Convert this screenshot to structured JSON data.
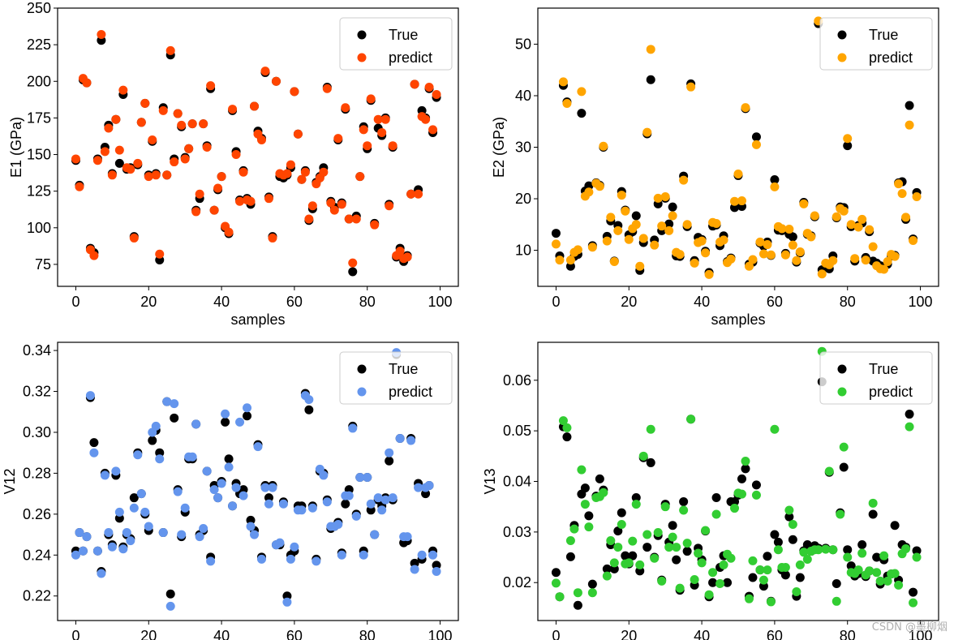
{
  "figure": {
    "watermark": "CSDN @墨柳烟"
  },
  "chart_data": [
    {
      "type": "scatter",
      "id": "e1",
      "title": "",
      "xlabel": "samples",
      "ylabel": "E1 (GPa)",
      "xlim": [
        -5,
        105
      ],
      "ylim": [
        60,
        250
      ],
      "xticks": [
        0,
        20,
        40,
        60,
        80,
        100
      ],
      "yticks": [
        75,
        100,
        125,
        150,
        175,
        200,
        225,
        250
      ],
      "legend": "top-right",
      "series": [
        {
          "name": "True",
          "color": "#000000",
          "values": [
            146,
            129,
            201,
            199,
            86,
            83,
            147,
            228,
            155,
            170,
            137,
            174,
            144,
            191,
            140,
            141,
            94,
            143,
            172,
            185,
            136,
            159,
            137,
            78,
            182,
            136,
            218,
            147,
            178,
            169,
            148,
            154,
            171,
            112,
            120,
            171,
            156,
            195,
            112,
            126,
            135,
            100,
            96,
            180,
            152,
            119,
            139,
            120,
            116,
            183,
            166,
            161,
            206,
            121,
            94,
            200,
            135,
            134,
            136,
            141,
            193,
            164,
            133,
            139,
            105,
            113,
            131,
            135,
            141,
            196,
            118,
            114,
            160,
            117,
            181,
            106,
            70,
            108,
            135,
            169,
            154,
            187,
            103,
            168,
            163,
            175,
            116,
            155,
            80,
            86,
            77,
            81,
            123,
            198,
            126,
            180,
            175,
            195,
            165,
            189
          ]
        },
        {
          "name": "predict",
          "color": "#ff4500",
          "values": [
            147,
            128,
            202,
            199,
            85,
            81,
            146,
            232,
            152,
            168,
            136,
            174,
            153,
            194,
            141,
            140,
            93,
            144,
            172,
            185,
            135,
            160,
            136,
            82,
            180,
            136,
            221,
            145,
            178,
            170,
            147,
            154,
            171,
            111,
            123,
            171,
            155,
            197,
            112,
            127,
            135,
            101,
            97,
            181,
            150,
            118,
            138,
            119,
            118,
            183,
            164,
            160,
            207,
            120,
            93,
            200,
            137,
            136,
            137,
            143,
            193,
            164,
            133,
            138,
            106,
            115,
            130,
            134,
            138,
            195,
            117,
            112,
            161,
            116,
            182,
            106,
            76,
            106,
            135,
            167,
            156,
            188,
            102,
            174,
            165,
            174,
            115,
            156,
            81,
            84,
            79,
            80,
            123,
            198,
            123,
            176,
            174,
            196,
            167,
            191
          ]
        }
      ]
    },
    {
      "type": "scatter",
      "id": "e2",
      "title": "",
      "xlabel": "samples",
      "ylabel": "E2 (GPa)",
      "xlim": [
        -5,
        105
      ],
      "ylim": [
        3,
        57
      ],
      "xticks": [
        0,
        20,
        40,
        60,
        80,
        100
      ],
      "yticks": [
        10,
        20,
        30,
        40,
        50
      ],
      "legend": "top-right",
      "series": [
        {
          "name": "True",
          "color": "#000000",
          "values": [
            13.3,
            8.9,
            42.0,
            38.8,
            6.9,
            8.8,
            9.2,
            36.6,
            21.5,
            22.5,
            10.9,
            23.1,
            22.6,
            30.0,
            12.7,
            15.7,
            7.9,
            14.8,
            21.4,
            17.8,
            13.0,
            13.6,
            16.7,
            6.1,
            11.5,
            32.6,
            43.1,
            12.0,
            19.0,
            13.8,
            20.1,
            15.1,
            18.4,
            8.9,
            8.8,
            24.4,
            14.6,
            42.3,
            8.0,
            12.5,
            12.1,
            9.8,
            5.7,
            14.7,
            14.9,
            10.9,
            12.8,
            7.8,
            8.5,
            18.3,
            24.5,
            18.5,
            37.5,
            7.3,
            7.7,
            32.0,
            11.4,
            10.8,
            11.6,
            9.0,
            23.7,
            13.9,
            13.8,
            9.4,
            13.1,
            12.6,
            7.7,
            9.5,
            19.3,
            13.1,
            12.8,
            16.5,
            54.0,
            6.2,
            6.7,
            6.4,
            8.9,
            16.3,
            18.4,
            18.3,
            30.3,
            14.6,
            7.9,
            14.8,
            15.3,
            8.6,
            13.6,
            7.9,
            7.5,
            7.0,
            6.7,
            7.3,
            8.9,
            9.0,
            23.1,
            23.3,
            16.0,
            38.1,
            12.2,
            21.2
          ]
        },
        {
          "name": "predict",
          "color": "#ffa500",
          "values": [
            11.2,
            8.1,
            42.7,
            38.5,
            8.1,
            9.6,
            10.1,
            40.8,
            20.5,
            21.3,
            10.6,
            23.0,
            22.4,
            30.2,
            11.8,
            16.4,
            7.8,
            13.8,
            20.7,
            17.6,
            12.1,
            14.2,
            15.0,
            6.9,
            12.3,
            32.9,
            49.0,
            11.0,
            20.1,
            14.7,
            20.4,
            13.8,
            16.7,
            9.6,
            9.2,
            23.6,
            15.0,
            41.7,
            7.5,
            11.5,
            11.8,
            9.5,
            5.3,
            15.4,
            15.2,
            11.6,
            12.0,
            7.6,
            8.3,
            19.5,
            24.8,
            19.6,
            37.7,
            6.9,
            8.2,
            30.5,
            11.6,
            9.3,
            11.1,
            9.1,
            22.3,
            14.6,
            14.2,
            9.1,
            14.1,
            11.0,
            8.0,
            9.7,
            19.0,
            13.3,
            12.6,
            16.7,
            54.5,
            5.4,
            7.5,
            7.2,
            8.0,
            16.5,
            18.1,
            17.6,
            31.7,
            15.0,
            8.4,
            14.5,
            16.0,
            8.1,
            14.0,
            10.7,
            7.0,
            6.4,
            6.3,
            7.8,
            9.2,
            8.8,
            22.9,
            21.0,
            16.4,
            34.3,
            11.9,
            20.4
          ]
        }
      ]
    },
    {
      "type": "scatter",
      "id": "v12",
      "title": "",
      "xlabel": "",
      "ylabel": "V12",
      "xlim": [
        -5,
        105
      ],
      "ylim": [
        0.208,
        0.344
      ],
      "xticks": [
        0,
        20,
        40,
        60,
        80,
        100
      ],
      "yticks": [
        0.22,
        0.24,
        0.26,
        0.28,
        0.3,
        0.32,
        0.34
      ],
      "legend": "top-right",
      "series": [
        {
          "name": "True",
          "color": "#000000",
          "values": [
            0.242,
            0.251,
            0.242,
            0.249,
            0.317,
            0.295,
            0.242,
            0.232,
            0.28,
            0.25,
            0.245,
            0.279,
            0.258,
            0.244,
            0.25,
            0.248,
            0.268,
            0.29,
            0.27,
            0.26,
            0.252,
            0.296,
            0.301,
            0.29,
            0.251,
            0.315,
            0.221,
            0.307,
            0.272,
            0.249,
            0.261,
            0.287,
            0.287,
            0.304,
            0.25,
            0.252,
            0.281,
            0.239,
            0.274,
            0.268,
            0.276,
            0.305,
            0.287,
            0.264,
            0.275,
            0.27,
            0.272,
            0.308,
            0.257,
            0.252,
            0.294,
            0.239,
            0.274,
            0.268,
            0.274,
            0.245,
            0.245,
            0.266,
            0.22,
            0.24,
            0.242,
            0.264,
            0.264,
            0.319,
            0.311,
            0.264,
            0.238,
            0.281,
            0.28,
            0.267,
            0.253,
            0.254,
            0.256,
            0.241,
            0.265,
            0.272,
            0.303,
            0.26,
            0.278,
            0.242,
            0.278,
            0.262,
            0.25,
            0.267,
            0.264,
            0.268,
            0.286,
            0.267,
            0.338,
            0.297,
            0.246,
            0.247,
            0.297,
            0.236,
            0.275,
            0.238,
            0.27,
            0.274,
            0.242,
            0.235
          ]
        },
        {
          "name": "predict",
          "color": "#6495ed",
          "values": [
            0.24,
            0.251,
            0.242,
            0.249,
            0.318,
            0.29,
            0.242,
            0.231,
            0.279,
            0.251,
            0.244,
            0.281,
            0.261,
            0.243,
            0.251,
            0.247,
            0.263,
            0.289,
            0.27,
            0.261,
            0.254,
            0.3,
            0.303,
            0.287,
            0.251,
            0.315,
            0.215,
            0.314,
            0.271,
            0.25,
            0.263,
            0.288,
            0.288,
            0.304,
            0.249,
            0.253,
            0.281,
            0.237,
            0.272,
            0.268,
            0.275,
            0.309,
            0.283,
            0.264,
            0.273,
            0.305,
            0.269,
            0.312,
            0.254,
            0.25,
            0.293,
            0.238,
            0.273,
            0.265,
            0.273,
            0.245,
            0.246,
            0.265,
            0.217,
            0.238,
            0.244,
            0.262,
            0.262,
            0.318,
            0.316,
            0.263,
            0.237,
            0.282,
            0.279,
            0.266,
            0.254,
            0.254,
            0.255,
            0.24,
            0.269,
            0.269,
            0.302,
            0.259,
            0.278,
            0.24,
            0.278,
            0.265,
            0.25,
            0.268,
            0.262,
            0.267,
            0.29,
            0.268,
            0.339,
            0.297,
            0.249,
            0.249,
            0.296,
            0.233,
            0.273,
            0.24,
            0.273,
            0.274,
            0.24,
            0.232
          ]
        }
      ]
    },
    {
      "type": "scatter",
      "id": "v13",
      "title": "",
      "xlabel": "",
      "ylabel": "V13",
      "xlim": [
        -5,
        105
      ],
      "ylim": [
        0.0125,
        0.0675
      ],
      "xticks": [
        0,
        20,
        40,
        60,
        80,
        100
      ],
      "yticks": [
        0.02,
        0.03,
        0.04,
        0.05,
        0.06
      ],
      "legend": "top-right",
      "series": [
        {
          "name": "True",
          "color": "#000000",
          "values": [
            0.022,
            0.0172,
            0.0508,
            0.0488,
            0.0251,
            0.0313,
            0.0155,
            0.0375,
            0.0387,
            0.0332,
            0.0197,
            0.0371,
            0.0405,
            0.0383,
            0.0227,
            0.0275,
            0.0227,
            0.0302,
            0.0338,
            0.0253,
            0.0237,
            0.0253,
            0.0368,
            0.0223,
            0.0447,
            0.027,
            0.0437,
            0.025,
            0.0293,
            0.0205,
            0.0355,
            0.028,
            0.0313,
            0.0245,
            0.0185,
            0.036,
            0.0262,
            0.0523,
            0.0195,
            0.0268,
            0.0245,
            0.0302,
            0.0172,
            0.02,
            0.0368,
            0.023,
            0.0253,
            0.02,
            0.036,
            0.036,
            0.0373,
            0.0405,
            0.0425,
            0.0173,
            0.021,
            0.0393,
            0.0225,
            0.0193,
            0.0252,
            0.0163,
            0.0295,
            0.028,
            0.0225,
            0.0215,
            0.033,
            0.0285,
            0.0173,
            0.021,
            0.0263,
            0.0275,
            0.0262,
            0.0273,
            0.0268,
            0.0597,
            0.0268,
            0.0418,
            0.0265,
            0.0198,
            0.0338,
            0.0428,
            0.0265,
            0.0233,
            0.0213,
            0.0218,
            0.0275,
            0.0212,
            0.0223,
            0.0335,
            0.025,
            0.0197,
            0.0245,
            0.0213,
            0.0217,
            0.0313,
            0.0205,
            0.0275,
            0.027,
            0.0533,
            0.0181,
            0.0263
          ]
        },
        {
          "name": "predict",
          "color": "#32cd32",
          "values": [
            0.0199,
            0.0172,
            0.052,
            0.0506,
            0.0283,
            0.0306,
            0.018,
            0.0423,
            0.0355,
            0.031,
            0.018,
            0.0368,
            0.037,
            0.0378,
            0.0213,
            0.0283,
            0.0239,
            0.027,
            0.0315,
            0.0237,
            0.0239,
            0.0282,
            0.0355,
            0.0235,
            0.045,
            0.0295,
            0.0503,
            0.0248,
            0.0299,
            0.0203,
            0.035,
            0.027,
            0.029,
            0.027,
            0.0189,
            0.0343,
            0.0278,
            0.0523,
            0.0206,
            0.0258,
            0.0239,
            0.0303,
            0.0176,
            0.022,
            0.0335,
            0.0198,
            0.0235,
            0.0256,
            0.0248,
            0.0347,
            0.0377,
            0.0375,
            0.044,
            0.0168,
            0.0243,
            0.0373,
            0.0225,
            0.0205,
            0.0225,
            0.0162,
            0.0503,
            0.0265,
            0.023,
            0.023,
            0.0343,
            0.0315,
            0.0182,
            0.0235,
            0.026,
            0.0246,
            0.0262,
            0.0265,
            0.0265,
            0.0657,
            0.0266,
            0.042,
            0.0265,
            0.0163,
            0.0335,
            0.0468,
            0.025,
            0.022,
            0.0218,
            0.0225,
            0.0258,
            0.0215,
            0.0223,
            0.0357,
            0.022,
            0.0203,
            0.0253,
            0.0203,
            0.0217,
            0.0218,
            0.0195,
            0.0257,
            0.0267,
            0.0508,
            0.016,
            0.025
          ]
        }
      ]
    }
  ]
}
